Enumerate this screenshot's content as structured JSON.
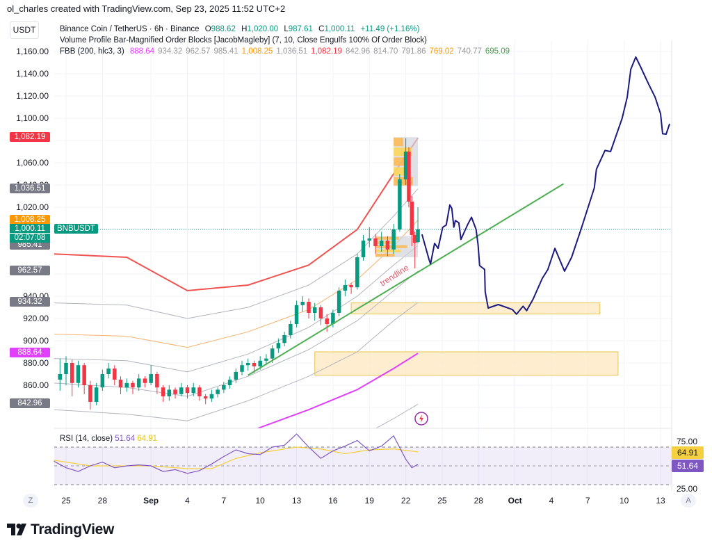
{
  "credit": "ol_charles created with TradingView.com, Sep 23, 2025 11:52 UTC+2",
  "currency": "USDT",
  "symbol_line": {
    "name": "Binance Coin / TetherUS · 6h · Binance",
    "o_label": "O",
    "o": "988.62",
    "h_label": "H",
    "h": "1,020.00",
    "l_label": "L",
    "l": "987.61",
    "c_label": "C",
    "c": "1,000.11",
    "change": "+11.49 (+1.16%)"
  },
  "indicator_vp": "Volume Profile Bar-Magnified Order Blocks [JacobMagleby] (7, 10, Close Engulfs 100% Of Order Block)",
  "indicator_fbb": {
    "name": "FBB (200, hlc3, 3)",
    "values": [
      {
        "v": "888.64",
        "color": "#e040fb"
      },
      {
        "v": "934.32",
        "color": "#999999"
      },
      {
        "v": "962.57",
        "color": "#999999"
      },
      {
        "v": "985.41",
        "color": "#999999"
      },
      {
        "v": "1,008.25",
        "color": "#ff9800"
      },
      {
        "v": "1,036.51",
        "color": "#999999"
      },
      {
        "v": "1,082.19",
        "color": "#f23645"
      },
      {
        "v": "842.96",
        "color": "#999999"
      },
      {
        "v": "814.70",
        "color": "#999999"
      },
      {
        "v": "791.86",
        "color": "#999999"
      },
      {
        "v": "769.02",
        "color": "#ff9800"
      },
      {
        "v": "740.77",
        "color": "#999999"
      },
      {
        "v": "695.09",
        "color": "#43a047"
      }
    ]
  },
  "price_axis": {
    "ticks": [
      "1,160.00",
      "1,140.00",
      "1,120.00",
      "1,100.00",
      "1,060.00",
      "1,040.00",
      "1,020.00",
      "940.00",
      "920.00",
      "900.00",
      "880.00",
      "860.00"
    ],
    "tick_values": [
      1160,
      1140,
      1120,
      1100,
      1060,
      1040,
      1020,
      940,
      920,
      900,
      880,
      860
    ],
    "tags": [
      {
        "label": "1,082.19",
        "price": 1082.19,
        "color": "#f23645"
      },
      {
        "label": "1,036.51",
        "price": 1036.51,
        "color": "#787b86"
      },
      {
        "label": "1,008.25",
        "price": 1008.25,
        "color": "#ff9800"
      },
      {
        "label": "985.41",
        "price": 985.41,
        "color": "#787b86"
      },
      {
        "label": "962.57",
        "price": 962.57,
        "color": "#787b86"
      },
      {
        "label": "934.32",
        "price": 934.32,
        "color": "#787b86"
      },
      {
        "label": "888.64",
        "price": 888.64,
        "color": "#e040fb"
      },
      {
        "label": "842.96",
        "price": 842.96,
        "color": "#787b86"
      }
    ],
    "last": {
      "price": "1,000.11",
      "countdown": "02:07:08",
      "symbol": "BNBUSDT",
      "value": 1000.11,
      "color": "#089981"
    }
  },
  "time_axis": {
    "labels": [
      {
        "t": "2025-08-25",
        "label": "25"
      },
      {
        "t": "2025-08-28",
        "label": "28"
      },
      {
        "t": "2025-09-01",
        "label": "Sep",
        "bold": true
      },
      {
        "t": "2025-09-04",
        "label": "4"
      },
      {
        "t": "2025-09-07",
        "label": "7"
      },
      {
        "t": "2025-09-10",
        "label": "10"
      },
      {
        "t": "2025-09-13",
        "label": "13"
      },
      {
        "t": "2025-09-16",
        "label": "16"
      },
      {
        "t": "2025-09-19",
        "label": "19"
      },
      {
        "t": "2025-09-22",
        "label": "22"
      },
      {
        "t": "2025-09-25",
        "label": "25"
      },
      {
        "t": "2025-09-28",
        "label": "28"
      },
      {
        "t": "2025-10-01",
        "label": "Oct",
        "bold": true
      },
      {
        "t": "2025-10-04",
        "label": "4"
      },
      {
        "t": "2025-10-07",
        "label": "7"
      },
      {
        "t": "2025-10-10",
        "label": "10"
      },
      {
        "t": "2025-10-13",
        "label": "13"
      }
    ],
    "left_button": "Z",
    "right_button": "A"
  },
  "chart_data": {
    "type": "candlestick",
    "colors": {
      "up": "#089981",
      "down": "#f23645"
    },
    "candles": [
      [
        "2025-08-24T12:00",
        865,
        884,
        855,
        870
      ],
      [
        "2025-08-25T00:00",
        870,
        886,
        860,
        880
      ],
      [
        "2025-08-25T12:00",
        880,
        883,
        850,
        862
      ],
      [
        "2025-08-26T00:00",
        862,
        882,
        858,
        878
      ],
      [
        "2025-08-26T12:00",
        878,
        880,
        852,
        860
      ],
      [
        "2025-08-27T00:00",
        860,
        864,
        838,
        845
      ],
      [
        "2025-08-27T12:00",
        845,
        862,
        842,
        858
      ],
      [
        "2025-08-28T00:00",
        858,
        874,
        855,
        870
      ],
      [
        "2025-08-28T12:00",
        870,
        880,
        866,
        875
      ],
      [
        "2025-08-29T00:00",
        875,
        878,
        860,
        865
      ],
      [
        "2025-08-29T12:00",
        865,
        868,
        852,
        858
      ],
      [
        "2025-08-30T00:00",
        858,
        866,
        854,
        862
      ],
      [
        "2025-08-30T12:00",
        862,
        864,
        852,
        858
      ],
      [
        "2025-08-31T00:00",
        858,
        870,
        855,
        866
      ],
      [
        "2025-08-31T12:00",
        866,
        868,
        858,
        862
      ],
      [
        "2025-09-01T00:00",
        862,
        878,
        860,
        870
      ],
      [
        "2025-09-01T12:00",
        870,
        872,
        852,
        858
      ],
      [
        "2025-09-02T00:00",
        858,
        860,
        845,
        850
      ],
      [
        "2025-09-02T12:00",
        850,
        860,
        846,
        856
      ],
      [
        "2025-09-03T00:00",
        856,
        858,
        848,
        852
      ],
      [
        "2025-09-03T12:00",
        852,
        862,
        850,
        858
      ],
      [
        "2025-09-04T00:00",
        858,
        860,
        848,
        853
      ],
      [
        "2025-09-04T12:00",
        853,
        862,
        850,
        858
      ],
      [
        "2025-09-05T00:00",
        858,
        860,
        846,
        850
      ],
      [
        "2025-09-05T12:00",
        850,
        852,
        843,
        848
      ],
      [
        "2025-09-06T00:00",
        848,
        856,
        845,
        852
      ],
      [
        "2025-09-06T12:00",
        852,
        858,
        849,
        856
      ],
      [
        "2025-09-07T00:00",
        856,
        863,
        853,
        860
      ],
      [
        "2025-09-07T12:00",
        860,
        868,
        857,
        865
      ],
      [
        "2025-09-08T00:00",
        865,
        875,
        862,
        872
      ],
      [
        "2025-09-08T12:00",
        872,
        882,
        869,
        878
      ],
      [
        "2025-09-09T00:00",
        878,
        884,
        873,
        880
      ],
      [
        "2025-09-09T12:00",
        880,
        882,
        871,
        877
      ],
      [
        "2025-09-10T00:00",
        877,
        886,
        874,
        882
      ],
      [
        "2025-09-10T12:00",
        882,
        888,
        878,
        884
      ],
      [
        "2025-09-11T00:00",
        884,
        896,
        880,
        893
      ],
      [
        "2025-09-11T12:00",
        893,
        902,
        889,
        898
      ],
      [
        "2025-09-12T00:00",
        898,
        908,
        895,
        905
      ],
      [
        "2025-09-12T12:00",
        905,
        918,
        902,
        915
      ],
      [
        "2025-09-13T00:00",
        915,
        936,
        912,
        932
      ],
      [
        "2025-09-13T12:00",
        932,
        940,
        926,
        935
      ],
      [
        "2025-09-14T00:00",
        935,
        938,
        920,
        925
      ],
      [
        "2025-09-14T12:00",
        925,
        934,
        918,
        930
      ],
      [
        "2025-09-15T00:00",
        930,
        932,
        914,
        920
      ],
      [
        "2025-09-15T12:00",
        920,
        924,
        908,
        915
      ],
      [
        "2025-09-16T00:00",
        915,
        928,
        912,
        925
      ],
      [
        "2025-09-16T12:00",
        925,
        948,
        922,
        945
      ],
      [
        "2025-09-17T00:00",
        945,
        955,
        940,
        950
      ],
      [
        "2025-09-17T12:00",
        950,
        952,
        942,
        948
      ],
      [
        "2025-09-18T00:00",
        948,
        978,
        946,
        975
      ],
      [
        "2025-09-18T12:00",
        975,
        995,
        972,
        990
      ],
      [
        "2025-09-19T00:00",
        990,
        1002,
        984,
        992
      ],
      [
        "2025-09-19T12:00",
        992,
        996,
        978,
        985
      ],
      [
        "2025-09-20T00:00",
        985,
        998,
        980,
        990
      ],
      [
        "2025-09-20T12:00",
        990,
        994,
        976,
        982
      ],
      [
        "2025-09-21T00:00",
        982,
        1005,
        978,
        1000
      ],
      [
        "2025-09-21T12:00",
        1000,
        1050,
        998,
        1045
      ],
      [
        "2025-09-22T00:00",
        1045,
        1082,
        1040,
        1070
      ],
      [
        "2025-09-22T06:00",
        1070,
        1074,
        1020,
        1025
      ],
      [
        "2025-09-22T12:00",
        1025,
        1030,
        985,
        995
      ],
      [
        "2025-09-22T18:00",
        995,
        998,
        965,
        988
      ],
      [
        "2025-09-23T00:00",
        988.62,
        1020,
        987.61,
        1000.11
      ]
    ],
    "fbb_bands": {
      "dates": [
        "2025-08-24",
        "2025-08-30",
        "2025-09-04",
        "2025-09-09",
        "2025-09-14",
        "2025-09-18",
        "2025-09-21",
        "2025-09-23"
      ],
      "series": [
        {
          "color": "#f0524f",
          "values": [
            978,
            975,
            945,
            950,
            968,
            1000,
            1050,
            1082.19
          ]
        },
        {
          "color": "#b2b5be",
          "values": [
            934,
            932,
            920,
            930,
            950,
            978,
            1012,
            1036.51
          ]
        },
        {
          "color": "#f5b26b",
          "values": [
            906,
            904,
            894,
            908,
            928,
            955,
            985,
            1008.25
          ]
        },
        {
          "color": "#b2b5be",
          "values": [
            884,
            882,
            872,
            888,
            912,
            940,
            968,
            985.41
          ]
        },
        {
          "color": "#b2b5be",
          "values": [
            862,
            858,
            850,
            868,
            892,
            918,
            945,
            962.57
          ]
        },
        {
          "color": "#b2b5be",
          "values": [
            838,
            834,
            828,
            846,
            868,
            890,
            918,
            934.32
          ]
        },
        {
          "color": "#e040fb",
          "values": [
            770,
            765,
            770,
            818,
            838,
            856,
            875,
            888.64
          ]
        },
        {
          "color": "#b2b5be",
          "values": [
            720,
            715,
            718,
            760,
            790,
            812,
            830,
            842.96
          ]
        }
      ]
    },
    "order_blocks": [
      {
        "from": "2025-09-21T00:00",
        "to": "2025-09-23T00:00",
        "top": 1083,
        "bottom": 1039
      },
      {
        "from": "2025-09-19T12:00",
        "to": "2025-09-23T00:00",
        "top": 994,
        "bottom": 975
      }
    ],
    "zones": [
      {
        "from": "2025-09-17T12:00",
        "to": "2025-10-08T00:00",
        "top": 934,
        "bottom": 924
      },
      {
        "from": "2025-09-14T12:00",
        "to": "2025-10-09T12:00",
        "top": 890,
        "bottom": 869
      }
    ],
    "trendline": {
      "from": [
        "2025-09-09T00:00",
        869
      ],
      "to": [
        "2025-10-05T00:00",
        1041
      ],
      "label": "trendline",
      "color": "#4caf50"
    },
    "projection": {
      "color": "#1a1a80",
      "points": [
        [
          "2025-09-23T08:00",
          995.6
        ],
        [
          "2025-09-23T22:00",
          973
        ],
        [
          "2025-09-24T01:00",
          969
        ],
        [
          "2025-09-24T09:00",
          987.5
        ],
        [
          "2025-09-24T16:00",
          983
        ],
        [
          "2025-09-25T01:00",
          1002
        ],
        [
          "2025-09-25T08:00",
          1004
        ],
        [
          "2025-09-25T15:00",
          1022
        ],
        [
          "2025-09-25T19:00",
          1019
        ],
        [
          "2025-09-25T23:00",
          1002
        ],
        [
          "2025-09-26T02:00",
          1008
        ],
        [
          "2025-09-26T09:00",
          1006
        ],
        [
          "2025-09-26T13:00",
          991
        ],
        [
          "2025-09-27T02:00",
          1004
        ],
        [
          "2025-09-27T10:00",
          1011
        ],
        [
          "2025-09-27T19:00",
          1000
        ],
        [
          "2025-09-27T23:00",
          986
        ],
        [
          "2025-09-28T02:00",
          967.5
        ],
        [
          "2025-09-28T12:00",
          964
        ],
        [
          "2025-09-28T13:00",
          944
        ],
        [
          "2025-09-28T19:00",
          929.4
        ],
        [
          "2025-09-29T15:00",
          932.5
        ],
        [
          "2025-09-30T19:00",
          928
        ],
        [
          "2025-10-01T03:00",
          923.8
        ],
        [
          "2025-10-01T16:00",
          931
        ],
        [
          "2025-10-01T23:00",
          927
        ],
        [
          "2025-10-02T12:00",
          937.5
        ],
        [
          "2025-10-03T06:00",
          956
        ],
        [
          "2025-10-03T17:00",
          964
        ],
        [
          "2025-10-04T07:00",
          983
        ],
        [
          "2025-10-05T02:00",
          962.5
        ],
        [
          "2025-10-05T16:00",
          975
        ],
        [
          "2025-10-06T12:00",
          1002
        ],
        [
          "2025-10-07T13:00",
          1037.5
        ],
        [
          "2025-10-07T17:00",
          1054
        ],
        [
          "2025-10-08T10:00",
          1071
        ],
        [
          "2025-10-08T21:00",
          1070
        ],
        [
          "2025-10-09T20:00",
          1100
        ],
        [
          "2025-10-10T06:00",
          1119
        ],
        [
          "2025-10-10T13:00",
          1144
        ],
        [
          "2025-10-10T23:00",
          1155
        ],
        [
          "2025-10-11T09:00",
          1145.6
        ],
        [
          "2025-10-12T00:00",
          1131
        ],
        [
          "2025-10-12T13:00",
          1119
        ],
        [
          "2025-10-13T00:00",
          1104
        ],
        [
          "2025-10-13T04:00",
          1086
        ],
        [
          "2025-10-13T11:00",
          1085.6
        ],
        [
          "2025-10-13T18:00",
          1095
        ]
      ]
    },
    "rsi": {
      "title": "RSI (14, close)",
      "value": "51.64",
      "ma_value": "64.91",
      "color": "#7e57c2",
      "ma_color": "#f5d142",
      "levels": [
        70,
        50,
        30
      ],
      "axis_ticks": [
        "75.00",
        "25.00"
      ],
      "values": [
        [
          "2025-08-24",
          55
        ],
        [
          "2025-08-25",
          48
        ],
        [
          "2025-08-26",
          44
        ],
        [
          "2025-08-27",
          50
        ],
        [
          "2025-08-28",
          54
        ],
        [
          "2025-08-29",
          48
        ],
        [
          "2025-08-30",
          50
        ],
        [
          "2025-08-31",
          51
        ],
        [
          "2025-09-01",
          50
        ],
        [
          "2025-09-02",
          44
        ],
        [
          "2025-09-03",
          46
        ],
        [
          "2025-09-04",
          42
        ],
        [
          "2025-09-05",
          45
        ],
        [
          "2025-09-06",
          52
        ],
        [
          "2025-09-07",
          60
        ],
        [
          "2025-09-08",
          67
        ],
        [
          "2025-09-09",
          63
        ],
        [
          "2025-09-10",
          62
        ],
        [
          "2025-09-11",
          70
        ],
        [
          "2025-09-12",
          72
        ],
        [
          "2025-09-13",
          84
        ],
        [
          "2025-09-14",
          70
        ],
        [
          "2025-09-15",
          58
        ],
        [
          "2025-09-16",
          66
        ],
        [
          "2025-09-17",
          71
        ],
        [
          "2025-09-18",
          77
        ],
        [
          "2025-09-19",
          66
        ],
        [
          "2025-09-20",
          71
        ],
        [
          "2025-09-21",
          82
        ],
        [
          "2025-09-22",
          57
        ],
        [
          "2025-09-22T12:00",
          48
        ],
        [
          "2025-09-23",
          51.64
        ]
      ],
      "ma": [
        [
          "2025-08-24",
          56
        ],
        [
          "2025-08-27",
          50
        ],
        [
          "2025-09-01",
          50
        ],
        [
          "2025-09-04",
          47
        ],
        [
          "2025-09-06",
          47
        ],
        [
          "2025-09-08",
          58
        ],
        [
          "2025-09-10",
          64
        ],
        [
          "2025-09-13",
          70
        ],
        [
          "2025-09-15",
          68
        ],
        [
          "2025-09-17",
          63
        ],
        [
          "2025-09-19",
          67
        ],
        [
          "2025-09-21",
          68
        ],
        [
          "2025-09-23",
          64.91
        ]
      ]
    }
  },
  "logo": "TradingView"
}
